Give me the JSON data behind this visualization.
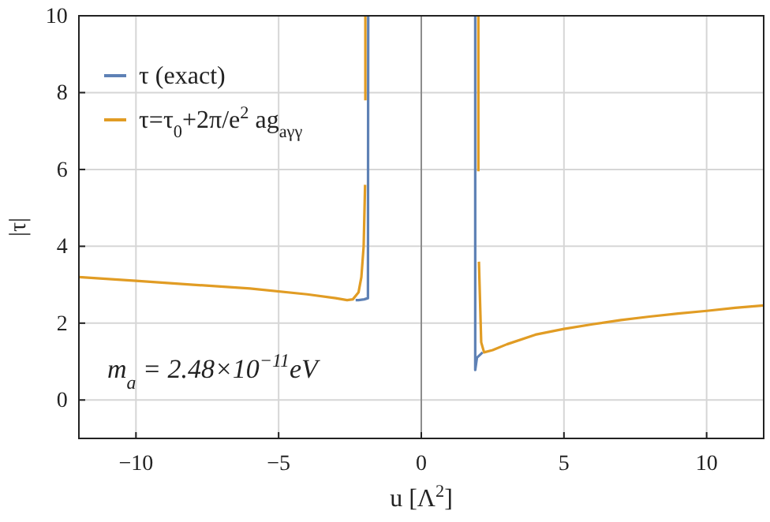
{
  "chart_data": {
    "type": "line",
    "xlabel": "u [Λ$^{2}$]",
    "ylabel": "|τ|",
    "xlim": [
      -12,
      12
    ],
    "ylim": [
      -1,
      10
    ],
    "xticks": [
      -10,
      -5,
      0,
      5,
      10
    ],
    "yticks": [
      0,
      2,
      4,
      6,
      8,
      10
    ],
    "grid": true,
    "legend": "top left",
    "line_style": "solid",
    "marker": "none",
    "ref_lines": [
      {
        "axis": "x",
        "value": 0,
        "color": "#8c8c8c"
      }
    ],
    "annotations": [
      {
        "text": "m$_{a}$ = 2.48×10$^{−11}$eV"
      }
    ],
    "series": [
      {
        "name": "τ (exact)",
        "color": "#5e81b5",
        "x": [
          -2.3,
          -2.2,
          -2.0,
          -1.87,
          -1.86,
          0,
          1.89,
          1.89,
          1.95,
          2.15
        ],
        "values": [
          2.6,
          2.6,
          2.62,
          2.65,
          10,
          null,
          10,
          0.78,
          1.1,
          1.24
        ]
      },
      {
        "name": "τ=τ$_{0}$+2π/e$^{2}$ ag$_{aγγ}$",
        "color": "#e19c24",
        "x": [
          -12,
          -10,
          -8,
          -6,
          -4,
          -3,
          -2.6,
          -2.4,
          -2.2,
          -2.1,
          -2.02,
          -1.97,
          -1.965,
          -1.96,
          -1.96,
          0,
          2.0,
          2.0,
          2.01,
          2.02,
          2.1,
          2.2,
          2.5,
          3,
          4,
          5,
          6,
          7,
          8,
          9,
          10,
          11,
          12
        ],
        "values": [
          3.2,
          3.1,
          3.0,
          2.9,
          2.75,
          2.65,
          2.6,
          2.62,
          2.8,
          3.2,
          4.0,
          5.6,
          null,
          7.8,
          10,
          null,
          10,
          5.95,
          null,
          3.6,
          1.5,
          1.24,
          1.3,
          1.45,
          1.7,
          1.85,
          1.97,
          2.08,
          2.17,
          2.25,
          2.32,
          2.4,
          2.46
        ]
      }
    ]
  }
}
